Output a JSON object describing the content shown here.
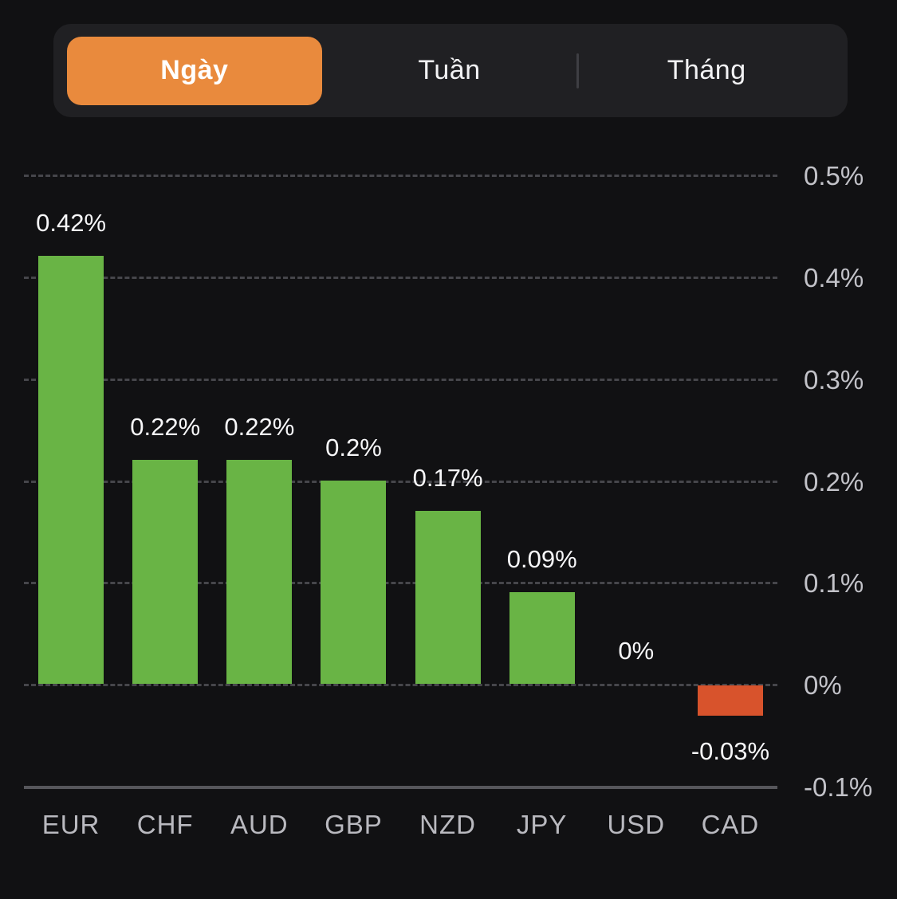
{
  "tabs": {
    "items": [
      {
        "label": "Ngày",
        "active": true
      },
      {
        "label": "Tuần",
        "active": false
      },
      {
        "label": "Tháng",
        "active": false
      }
    ]
  },
  "colors": {
    "accent_orange": "#e98a3d",
    "positive_green": "#69b445",
    "negative_red": "#d8532c",
    "background": "#111113",
    "segmented_control_bg": "#202023"
  },
  "chart_data": {
    "type": "bar",
    "title": "",
    "xlabel": "",
    "ylabel": "",
    "unit": "%",
    "categories": [
      "EUR",
      "CHF",
      "AUD",
      "GBP",
      "NZD",
      "JPY",
      "USD",
      "CAD"
    ],
    "values": [
      0.42,
      0.22,
      0.22,
      0.2,
      0.17,
      0.09,
      0,
      -0.03
    ],
    "value_labels": [
      "0.42%",
      "0.22%",
      "0.22%",
      "0.2%",
      "0.17%",
      "0.09%",
      "0%",
      "-0.03%"
    ],
    "ylim": [
      -0.1,
      0.5
    ],
    "yticks": [
      {
        "label": "0.5%",
        "value": 0.5
      },
      {
        "label": "0.4%",
        "value": 0.4
      },
      {
        "label": "0.3%",
        "value": 0.3
      },
      {
        "label": "0.2%",
        "value": 0.2
      },
      {
        "label": "0.1%",
        "value": 0.1
      },
      {
        "label": "0%",
        "value": 0
      },
      {
        "label": "-0.1%",
        "value": -0.1
      }
    ],
    "grid": "dashed-horizontal",
    "legend_position": "none",
    "bar_colors": {
      "positive": "#69b445",
      "negative": "#d8532c"
    }
  }
}
